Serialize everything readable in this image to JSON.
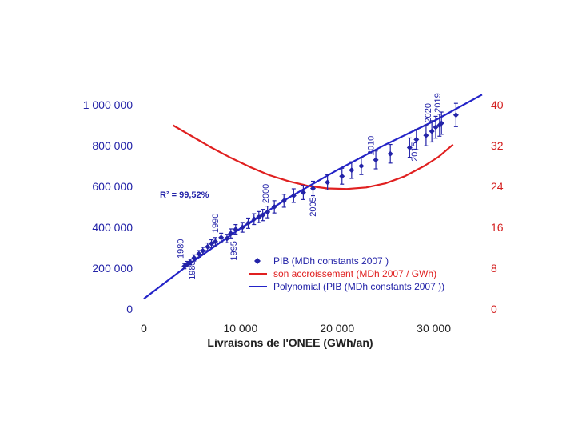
{
  "chart_data": {
    "type": "scatter",
    "xlabel": "Livraisons de l'ONEE (GWh/an)",
    "x_axis": {
      "range": [
        0,
        35000
      ],
      "ticks": [
        0,
        10000,
        20000,
        30000
      ],
      "tick_labels": [
        "0",
        "10 000",
        "20 000",
        "30 000"
      ]
    },
    "y_left": {
      "range": [
        0,
        1000000
      ],
      "ticks": [
        0,
        200000,
        400000,
        600000,
        800000,
        1000000
      ],
      "tick_labels": [
        "0",
        "200 000",
        "400 000",
        "600 000",
        "800 000",
        "1 000 000"
      ],
      "color": "#2323a8"
    },
    "y_right": {
      "range": [
        0,
        40
      ],
      "ticks": [
        0,
        8,
        16,
        24,
        32,
        40
      ],
      "tick_labels": [
        "0",
        "8",
        "16",
        "24",
        "32",
        "40"
      ],
      "color": "#d42020"
    },
    "r2_label": "R² = 99,52%",
    "series": [
      {
        "name": "PIB (MDh constants 2007 )",
        "kind": "scatter",
        "axis": "left",
        "color": "#2323a8",
        "error_fraction": 0.06,
        "x": [
          4200,
          4500,
          4800,
          5200,
          5700,
          6100,
          6600,
          7000,
          7400,
          8000,
          8600,
          9000,
          9500,
          10200,
          10800,
          11400,
          11900,
          12300,
          12800,
          13500,
          14500,
          15500,
          16500,
          17500,
          19000,
          20500,
          21500,
          22500,
          24000,
          25500,
          27500,
          28200,
          29200,
          29800,
          30200,
          30600,
          30800,
          32300
        ],
        "y": [
          210000,
          220000,
          230000,
          250000,
          270000,
          285000,
          305000,
          320000,
          330000,
          350000,
          345000,
          370000,
          390000,
          400000,
          420000,
          440000,
          450000,
          460000,
          475000,
          500000,
          530000,
          555000,
          570000,
          590000,
          620000,
          650000,
          680000,
          700000,
          730000,
          760000,
          790000,
          830000,
          850000,
          870000,
          890000,
          900000,
          910000,
          950000
        ]
      },
      {
        "name": "son accroissement (MDh 2007 / GWh)",
        "kind": "line",
        "axis": "right",
        "color": "#e02020",
        "x": [
          3000,
          5000,
          7000,
          9000,
          11000,
          13000,
          15000,
          17000,
          19000,
          21000,
          23000,
          25000,
          27000,
          29000,
          30500,
          32000
        ],
        "y": [
          36.0,
          33.8,
          31.6,
          29.6,
          27.8,
          26.2,
          25.0,
          24.1,
          23.6,
          23.5,
          23.8,
          24.6,
          26.0,
          28.0,
          29.8,
          32.2
        ]
      },
      {
        "name": "Polynomial (PIB (MDh constants 2007 ))",
        "kind": "line",
        "axis": "left",
        "color": "#2323c8",
        "x": [
          0,
          5000,
          10000,
          15000,
          20000,
          25000,
          30000,
          35000
        ],
        "y": [
          50000,
          230000,
          395000,
          545000,
          680000,
          805000,
          920000,
          1050000
        ]
      }
    ],
    "year_labels": [
      {
        "text": "1980",
        "x": 4100,
        "y": 295000
      },
      {
        "text": "1985",
        "x": 5300,
        "y": 190000
      },
      {
        "text": "1990",
        "x": 7700,
        "y": 420000
      },
      {
        "text": "1995",
        "x": 9600,
        "y": 285000
      },
      {
        "text": "2000",
        "x": 12900,
        "y": 565000
      },
      {
        "text": "2005",
        "x": 17800,
        "y": 500000
      },
      {
        "text": "2010",
        "x": 23800,
        "y": 800000
      },
      {
        "text": "2015",
        "x": 28300,
        "y": 770000
      },
      {
        "text": "2020",
        "x": 29700,
        "y": 960000
      },
      {
        "text": "2019",
        "x": 30700,
        "y": 1010000
      }
    ],
    "legend_position": "bottom-right",
    "grid": false
  }
}
